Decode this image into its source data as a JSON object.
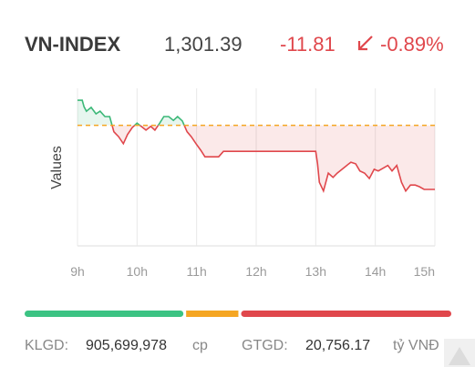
{
  "header": {
    "symbol": "VN-INDEX",
    "price": "1,301.39",
    "change": "-11.81",
    "change_percent": "-0.89%"
  },
  "chart_data": {
    "type": "line",
    "ylabel": "Values",
    "x": [
      9.0,
      9.08,
      9.11,
      9.15,
      9.23,
      9.31,
      9.38,
      9.46,
      9.54,
      9.61,
      9.69,
      9.77,
      9.84,
      9.92,
      10.0,
      10.07,
      10.15,
      10.23,
      10.3,
      10.38,
      10.45,
      10.53,
      10.61,
      10.68,
      10.76,
      10.84,
      10.91,
      10.99,
      11.07,
      11.14,
      11.22,
      11.37,
      11.45,
      13.0,
      13.03,
      13.06,
      13.13,
      13.21,
      13.29,
      13.36,
      13.52,
      13.59,
      13.67,
      13.74,
      13.82,
      13.9,
      13.98,
      14.05,
      14.13,
      14.21,
      14.28,
      14.36,
      14.44,
      14.51,
      14.59,
      14.67,
      14.74,
      14.82,
      15.0
    ],
    "series": [
      {
        "name": "VN-INDEX",
        "color": "#e0474c",
        "color_up": "#3cb878",
        "values": [
          1317.8,
          1317.8,
          1316.6,
          1315.8,
          1316.5,
          1315.3,
          1315.8,
          1314.8,
          1314.8,
          1312.0,
          1311.1,
          1309.8,
          1311.5,
          1312.8,
          1313.6,
          1313.0,
          1312.3,
          1313.0,
          1312.3,
          1313.6,
          1314.8,
          1314.8,
          1314.1,
          1314.8,
          1314.0,
          1312.0,
          1311.1,
          1309.8,
          1308.6,
          1307.4,
          1307.4,
          1307.4,
          1308.4,
          1308.4,
          1306.1,
          1302.7,
          1301.1,
          1304.4,
          1303.6,
          1304.4,
          1305.8,
          1306.4,
          1306.1,
          1304.8,
          1304.4,
          1303.4,
          1305.1,
          1304.8,
          1305.3,
          1305.8,
          1304.8,
          1305.8,
          1302.7,
          1301.1,
          1302.2,
          1302.2,
          1301.9,
          1301.39,
          1301.39
        ]
      }
    ],
    "reference": 1313.2,
    "reference_color": "#f5a623",
    "xlim": [
      9,
      15
    ],
    "ylim": [
      1291,
      1320
    ],
    "xticks": [
      {
        "value": 9,
        "label": "9h"
      },
      {
        "value": 10,
        "label": "10h"
      },
      {
        "value": 11,
        "label": "11h"
      },
      {
        "value": 12,
        "label": "12h"
      },
      {
        "value": 13,
        "label": "13h"
      },
      {
        "value": 14,
        "label": "14h"
      },
      {
        "value": 15,
        "label": "15h"
      }
    ],
    "grid": true
  },
  "breadth": [
    {
      "color": "#3cc383",
      "value": 37.7
    },
    {
      "color": "#f5a623",
      "value": 12.4
    },
    {
      "color": "#e0474c",
      "value": 49.9
    }
  ],
  "footer": {
    "volume_label": "KLGD:",
    "volume": "905,699,978",
    "volume_unit": "cp",
    "value_label": "GTGD:",
    "value": "20,756.17",
    "value_unit": "tỷ VNĐ"
  }
}
